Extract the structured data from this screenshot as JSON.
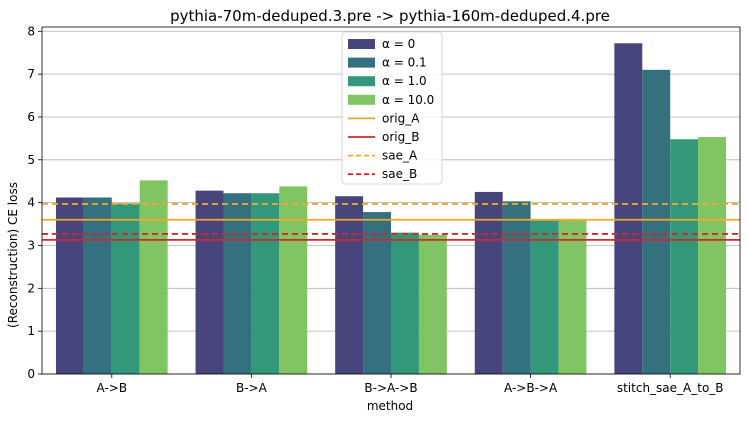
{
  "chart_data": {
    "type": "bar",
    "title": "pythia-70m-deduped.3.pre -> pythia-160m-deduped.4.pre",
    "xlabel": "method",
    "ylabel": "(Reconstruction) CE loss",
    "ylim": [
      0,
      8.1
    ],
    "yticks": [
      0,
      1,
      2,
      3,
      4,
      5,
      6,
      7,
      8
    ],
    "grid": "horizontal",
    "legend_location": "top-center",
    "categories": [
      "A->B",
      "B->A",
      "B->A->B",
      "A->B->A",
      "stitch_sae_A_to_B"
    ],
    "series": [
      {
        "name": "α = 0",
        "color": "#46467d",
        "values": [
          4.12,
          4.28,
          4.15,
          4.25,
          7.72
        ]
      },
      {
        "name": "α = 0.1",
        "color": "#35707f",
        "values": [
          4.12,
          4.22,
          3.78,
          4.03,
          7.1
        ]
      },
      {
        "name": "α = 1.0",
        "color": "#33977a",
        "values": [
          3.98,
          4.22,
          3.3,
          3.58,
          5.48
        ]
      },
      {
        "name": "α = 10.0",
        "color": "#80c464",
        "values": [
          4.52,
          4.38,
          3.25,
          3.6,
          5.53
        ]
      }
    ],
    "reference_lines": [
      {
        "name": "orig_A",
        "value": 3.6,
        "color": "#f5a623",
        "style": "solid"
      },
      {
        "name": "orig_B",
        "value": 3.13,
        "color": "#d62728",
        "style": "solid"
      },
      {
        "name": "sae_A",
        "value": 3.97,
        "color": "#f5a623",
        "style": "dashed"
      },
      {
        "name": "sae_B",
        "value": 3.27,
        "color": "#d62728",
        "style": "dashed"
      }
    ]
  }
}
